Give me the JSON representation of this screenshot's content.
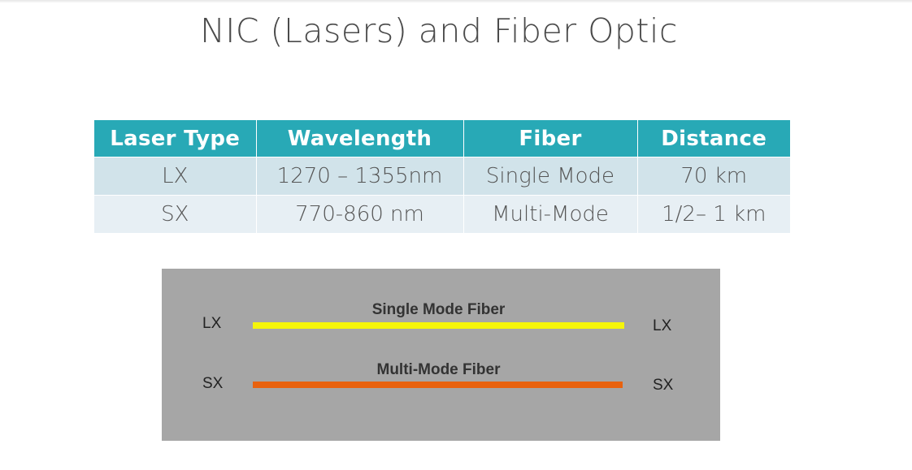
{
  "slide": {
    "title": "NIC (Lasers) and Fiber Optic"
  },
  "table": {
    "headers": [
      "Laser Type",
      "Wavelength",
      "Fiber",
      "Distance"
    ],
    "rows": [
      [
        "LX",
        "1270 – 1355nm",
        "Single Mode",
        "70 km"
      ],
      [
        "SX",
        "770-860 nm",
        "Multi-Mode",
        "1/2– 1 km"
      ]
    ],
    "header_color": "#28a9b6",
    "row_colors": [
      "#d1e3ea",
      "#e7eff4"
    ]
  },
  "diagram": {
    "background_color": "#a6a6a6",
    "fibers": [
      {
        "name": "Single Mode Fiber",
        "left_end": "LX",
        "right_end": "LX",
        "color": "#f5f50a"
      },
      {
        "name": "Multi-Mode Fiber",
        "left_end": "SX",
        "right_end": "SX",
        "color": "#e8620f"
      }
    ]
  }
}
